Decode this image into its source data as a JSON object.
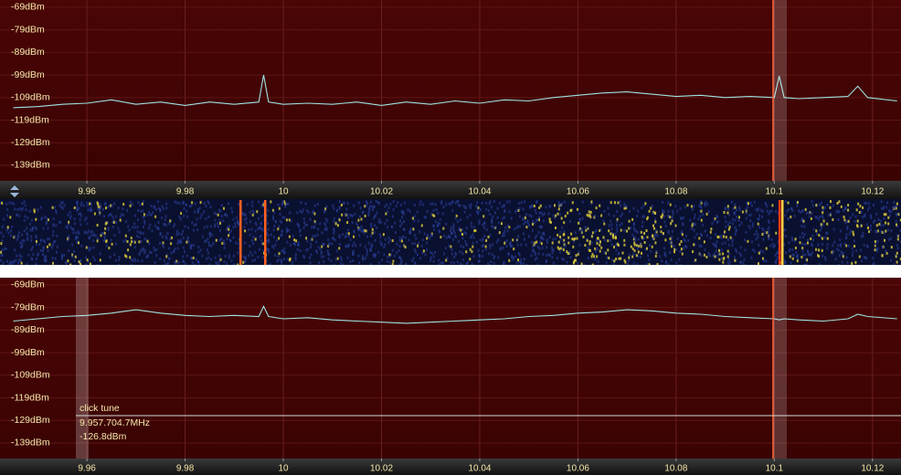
{
  "chart_data": [
    {
      "type": "line",
      "color": "#9fe3e3",
      "grid": true,
      "xlim": [
        9.9423,
        10.1258
      ],
      "ylim": [
        -145.9,
        -65.8
      ],
      "xticks": [
        9.96,
        9.98,
        10,
        10.02,
        10.04,
        10.06,
        10.08,
        10.1,
        10.12
      ],
      "yticks": [
        {
          "value": -69,
          "label": "-69dBm"
        },
        {
          "value": -79,
          "label": "-79dBm"
        },
        {
          "value": -89,
          "label": "-89dBm"
        },
        {
          "value": -99,
          "label": "-99dBm"
        },
        {
          "value": -109,
          "label": "-109dBm"
        },
        {
          "value": -119,
          "label": "-119dBm"
        },
        {
          "value": -129,
          "label": "-129dBm"
        },
        {
          "value": -139,
          "label": "-139dBm"
        }
      ],
      "x": [
        9.945,
        9.95,
        9.955,
        9.96,
        9.965,
        9.97,
        9.975,
        9.98,
        9.985,
        9.99,
        9.995,
        9.996,
        9.997,
        10.0,
        10.005,
        10.01,
        10.015,
        10.02,
        10.025,
        10.03,
        10.035,
        10.04,
        10.045,
        10.05,
        10.055,
        10.06,
        10.065,
        10.07,
        10.075,
        10.08,
        10.085,
        10.09,
        10.095,
        10.1,
        10.101,
        10.102,
        10.105,
        10.11,
        10.115,
        10.117,
        10.119,
        10.125
      ],
      "values": [
        -113.5,
        -113,
        -112,
        -111.5,
        -110,
        -112,
        -111,
        -112.5,
        -111,
        -112,
        -111,
        -99,
        -111,
        -112,
        -111.5,
        -112,
        -111,
        -112.5,
        -111,
        -112,
        -110.5,
        -111.5,
        -110,
        -110.5,
        -109,
        -108,
        -107,
        -106.5,
        -107.5,
        -108.5,
        -108,
        -109,
        -108.5,
        -109,
        -99.5,
        -109,
        -109.5,
        -109,
        -108.5,
        -104,
        -109,
        -110.5
      ]
    },
    {
      "type": "line",
      "color": "#9fe3e3",
      "grid": true,
      "xlim": [
        9.9423,
        10.1258
      ],
      "ylim": [
        -145.9,
        -65.8
      ],
      "xticks": [
        9.96,
        9.98,
        10,
        10.02,
        10.04,
        10.06,
        10.08,
        10.1,
        10.12
      ],
      "yticks": [
        {
          "value": -69,
          "label": "-69dBm"
        },
        {
          "value": -79,
          "label": "-79dBm"
        },
        {
          "value": -89,
          "label": "-89dBm"
        },
        {
          "value": -99,
          "label": "-99dBm"
        },
        {
          "value": -109,
          "label": "-109dBm"
        },
        {
          "value": -119,
          "label": "-119dBm"
        },
        {
          "value": -129,
          "label": "-129dBm"
        },
        {
          "value": -139,
          "label": "-139dBm"
        }
      ],
      "x": [
        9.945,
        9.95,
        9.955,
        9.96,
        9.965,
        9.97,
        9.975,
        9.98,
        9.985,
        9.99,
        9.995,
        9.996,
        9.997,
        10.0,
        10.005,
        10.01,
        10.015,
        10.02,
        10.025,
        10.03,
        10.035,
        10.04,
        10.045,
        10.05,
        10.055,
        10.06,
        10.065,
        10.07,
        10.075,
        10.08,
        10.085,
        10.09,
        10.095,
        10.1,
        10.101,
        10.102,
        10.105,
        10.11,
        10.115,
        10.117,
        10.119,
        10.125
      ],
      "values": [
        -85,
        -84,
        -83,
        -82.5,
        -81.5,
        -80,
        -81.5,
        -82.5,
        -83,
        -82.5,
        -83,
        -78.5,
        -83,
        -84,
        -83.5,
        -84.5,
        -85,
        -85.5,
        -86,
        -85.5,
        -85,
        -84.5,
        -84,
        -83,
        -82.5,
        -81.5,
        -81,
        -80,
        -80.5,
        -81.5,
        -82,
        -83,
        -83.5,
        -84,
        -84.5,
        -84,
        -84.5,
        -85,
        -84,
        -82,
        -83,
        -84
      ]
    }
  ],
  "cursor": {
    "label": "click tune",
    "frequency": "9.957.704.7MHz",
    "level": "-126.8dBm"
  }
}
